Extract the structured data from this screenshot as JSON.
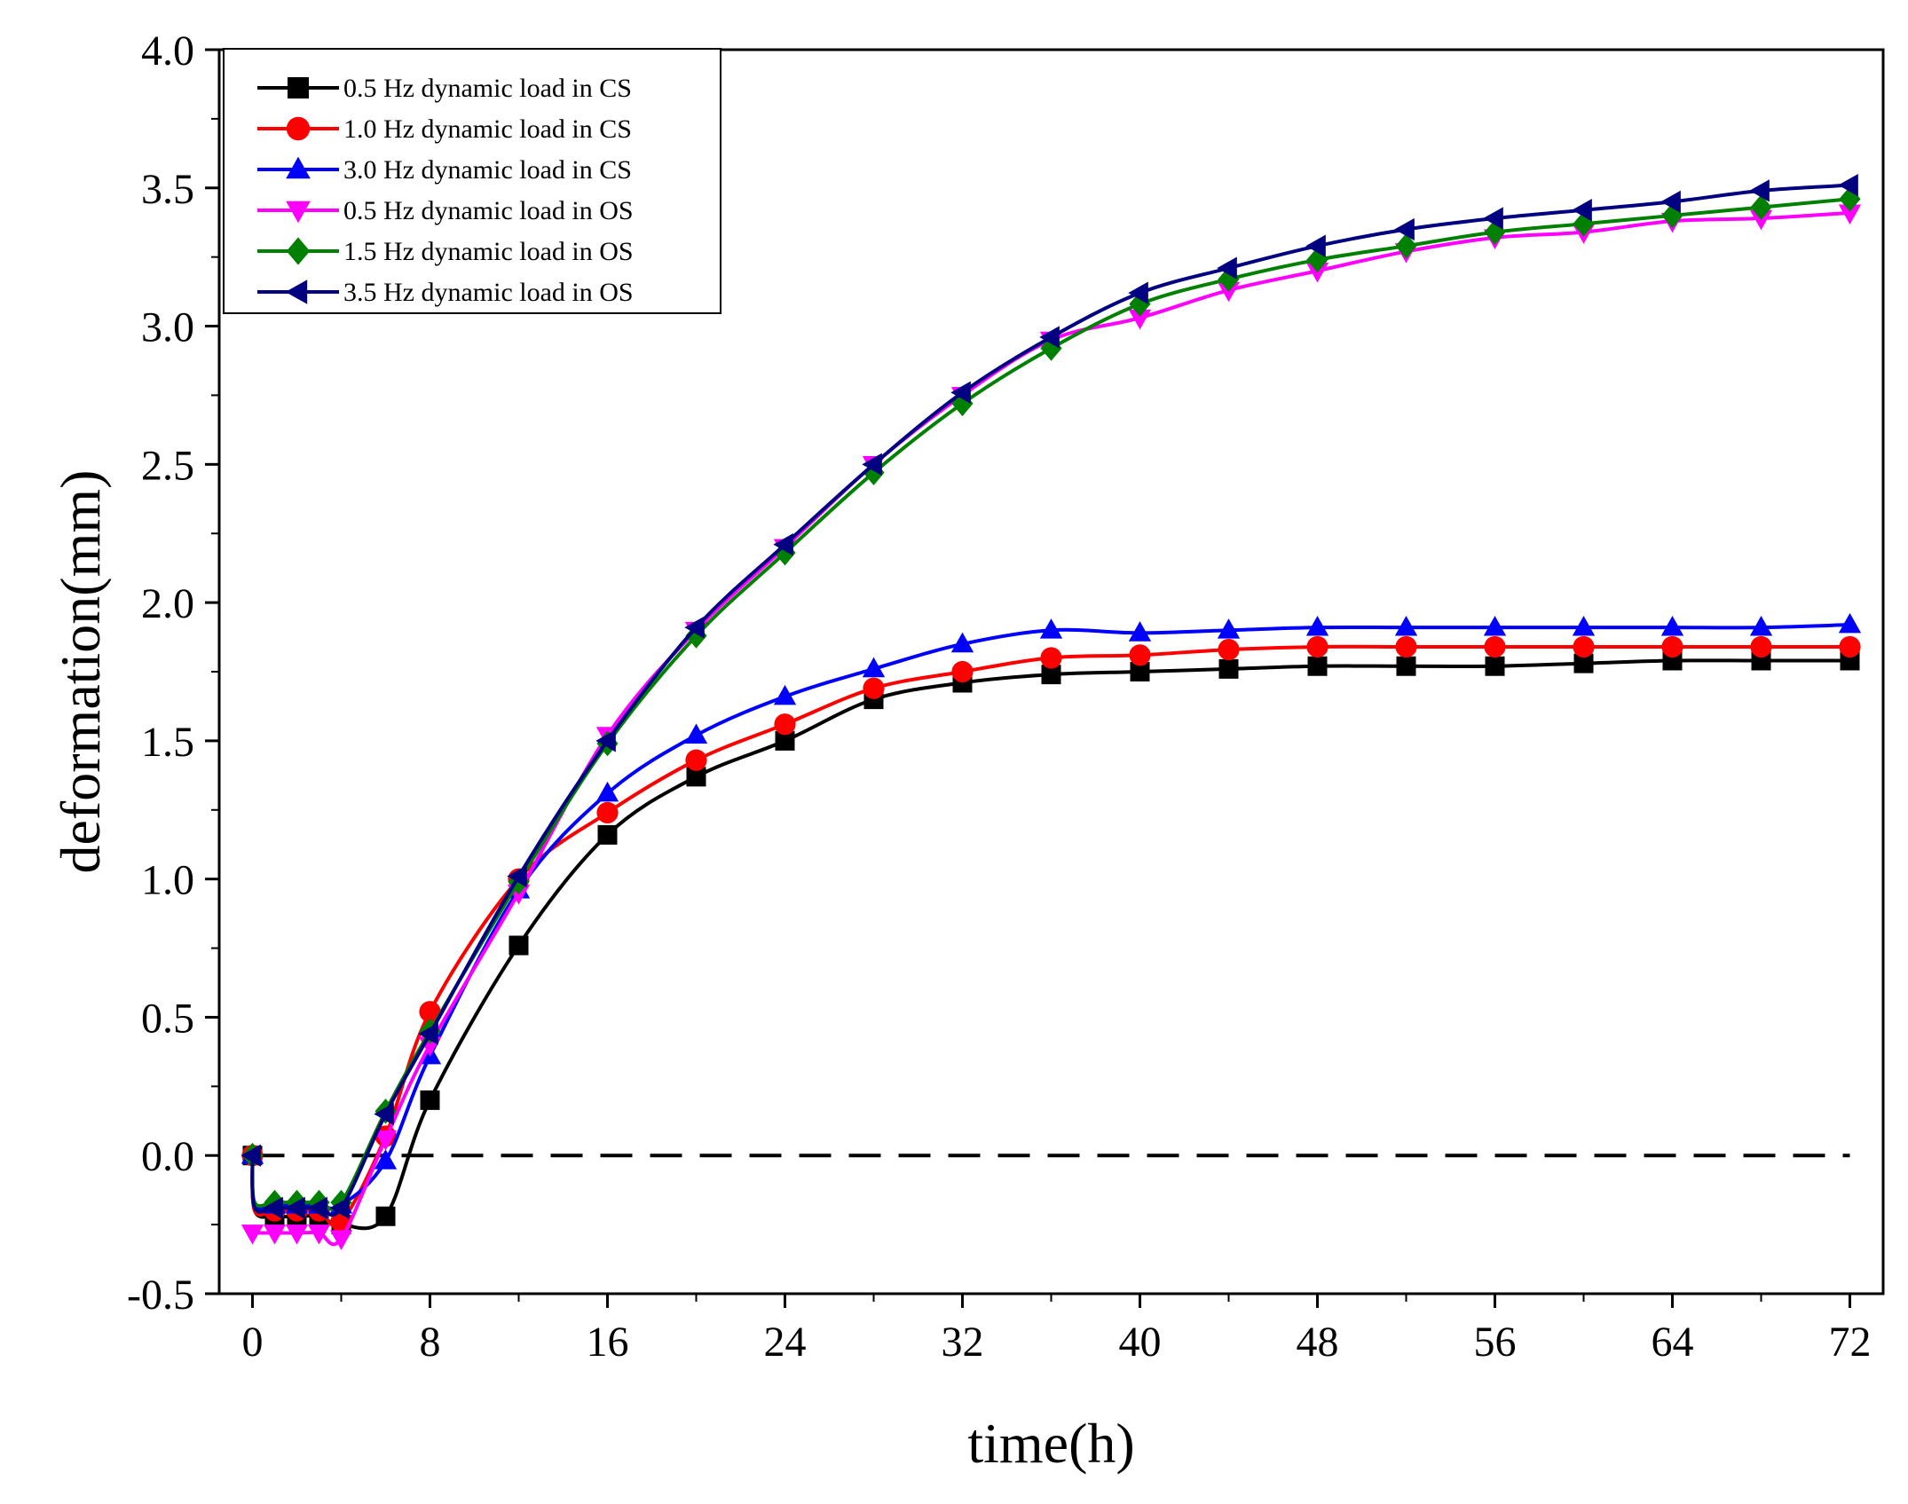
{
  "chart_data": {
    "type": "line",
    "title": "",
    "xlabel": "time(h)",
    "ylabel": "deformation(mm)",
    "xlim": [
      -1.5,
      73.5
    ],
    "ylim": [
      -0.5,
      4.0
    ],
    "xticks": [
      0,
      8,
      16,
      24,
      32,
      40,
      48,
      56,
      64,
      72
    ],
    "xtick_labels": [
      "0",
      "8",
      "16",
      "24",
      "32",
      "40",
      "48",
      "56",
      "64",
      "72"
    ],
    "yticks": [
      -0.5,
      0.0,
      0.5,
      1.0,
      1.5,
      2.0,
      2.5,
      3.0,
      3.5,
      4.0
    ],
    "ytick_labels": [
      "-0.5",
      "0.0",
      "0.5",
      "1.0",
      "1.5",
      "2.0",
      "2.5",
      "3.0",
      "3.5",
      "4.0"
    ],
    "grid": false,
    "legend_position": "top-left",
    "reference_line": {
      "y": 0.0,
      "style": "dashed",
      "color": "#000000"
    },
    "series": [
      {
        "name": "0.5 Hz dynamic load in CS",
        "color": "#000000",
        "marker": "square",
        "x": [
          0,
          0.1,
          1,
          2,
          3,
          4,
          6,
          8,
          12,
          16,
          20,
          24,
          28,
          32,
          36,
          40,
          44,
          48,
          52,
          56,
          60,
          64,
          68,
          72
        ],
        "y": [
          0,
          -0.2,
          -0.22,
          -0.22,
          -0.22,
          -0.25,
          -0.22,
          0.2,
          0.76,
          1.16,
          1.37,
          1.5,
          1.65,
          1.71,
          1.74,
          1.75,
          1.76,
          1.77,
          1.77,
          1.77,
          1.78,
          1.79,
          1.79,
          1.79
        ]
      },
      {
        "name": "1.0 Hz dynamic load in CS",
        "color": "#ff0000",
        "marker": "circle",
        "x": [
          0,
          0.1,
          1,
          2,
          3,
          4,
          6,
          8,
          12,
          16,
          20,
          24,
          28,
          32,
          36,
          40,
          44,
          48,
          52,
          56,
          60,
          64,
          68,
          72
        ],
        "y": [
          0,
          -0.2,
          -0.2,
          -0.2,
          -0.2,
          -0.24,
          0.07,
          0.52,
          1.0,
          1.24,
          1.43,
          1.56,
          1.69,
          1.75,
          1.8,
          1.81,
          1.83,
          1.84,
          1.84,
          1.84,
          1.84,
          1.84,
          1.84,
          1.84
        ]
      },
      {
        "name": "3.0  Hz dynamic load in CS",
        "color": "#0000ff",
        "marker": "triangle-up",
        "x": [
          0,
          0.1,
          1,
          2,
          3,
          4,
          6,
          8,
          12,
          16,
          20,
          24,
          28,
          32,
          36,
          40,
          44,
          48,
          52,
          56,
          60,
          64,
          68,
          72
        ],
        "y": [
          0,
          -0.18,
          -0.18,
          -0.18,
          -0.18,
          -0.18,
          -0.02,
          0.36,
          0.96,
          1.31,
          1.52,
          1.66,
          1.76,
          1.85,
          1.9,
          1.89,
          1.9,
          1.91,
          1.91,
          1.91,
          1.91,
          1.91,
          1.91,
          1.92
        ]
      },
      {
        "name": "0.5 Hz dynamic load in OS",
        "color": "#ff00ff",
        "marker": "triangle-down",
        "x": [
          0,
          0.1,
          1,
          2,
          3,
          4,
          6,
          8,
          12,
          16,
          20,
          24,
          28,
          32,
          36,
          40,
          44,
          48,
          52,
          56,
          60,
          64,
          68,
          72
        ],
        "y": [
          -0.28,
          -0.28,
          -0.28,
          -0.28,
          -0.28,
          -0.3,
          0.06,
          0.4,
          0.95,
          1.52,
          1.9,
          2.2,
          2.5,
          2.75,
          2.95,
          3.03,
          3.13,
          3.2,
          3.27,
          3.32,
          3.34,
          3.38,
          3.39,
          3.41
        ]
      },
      {
        "name": "1.5 Hz dynamic load in OS",
        "color": "#008000",
        "marker": "diamond",
        "x": [
          0,
          0.1,
          1,
          2,
          3,
          4,
          6,
          8,
          12,
          16,
          20,
          24,
          28,
          32,
          36,
          40,
          44,
          48,
          52,
          56,
          60,
          64,
          68,
          72
        ],
        "y": [
          0,
          -0.17,
          -0.17,
          -0.17,
          -0.17,
          -0.17,
          0.16,
          0.45,
          0.99,
          1.49,
          1.88,
          2.18,
          2.47,
          2.72,
          2.92,
          3.08,
          3.17,
          3.24,
          3.29,
          3.34,
          3.37,
          3.4,
          3.43,
          3.46
        ]
      },
      {
        "name": "3.5 Hz dynamic load in OS",
        "color": "#000080",
        "marker": "triangle-left",
        "x": [
          0,
          0.1,
          1,
          2,
          3,
          4,
          6,
          8,
          12,
          16,
          20,
          24,
          28,
          32,
          36,
          40,
          44,
          48,
          52,
          56,
          60,
          64,
          68,
          72
        ],
        "y": [
          0,
          -0.19,
          -0.19,
          -0.19,
          -0.19,
          -0.19,
          0.15,
          0.44,
          1.01,
          1.5,
          1.91,
          2.21,
          2.5,
          2.76,
          2.96,
          3.12,
          3.21,
          3.29,
          3.35,
          3.39,
          3.42,
          3.45,
          3.49,
          3.51
        ]
      }
    ]
  }
}
